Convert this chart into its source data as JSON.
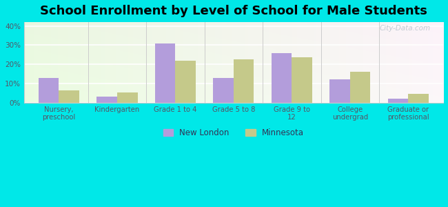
{
  "title": "School Enrollment by Level of School for Male Students",
  "categories": [
    "Nursery,\npreschool",
    "Kindergarten",
    "Grade 1 to 4",
    "Grade 5 to 8",
    "Grade 9 to\n12",
    "College\nundergrad",
    "Graduate or\nprofessional"
  ],
  "new_london": [
    13,
    3,
    31,
    13,
    26,
    12,
    2
  ],
  "minnesota": [
    6.5,
    5.5,
    22,
    22.5,
    23.5,
    16,
    4.5
  ],
  "new_london_color": "#b39ddb",
  "minnesota_color": "#c5c98a",
  "bar_width": 0.35,
  "ylim": [
    0,
    42
  ],
  "yticks": [
    0,
    10,
    20,
    30,
    40
  ],
  "ytick_labels": [
    "0%",
    "10%",
    "20%",
    "30%",
    "40%"
  ],
  "background_color": "#00e8e8",
  "title_fontsize": 13,
  "legend_labels": [
    "New London",
    "Minnesota"
  ],
  "watermark": "City-Data.com"
}
